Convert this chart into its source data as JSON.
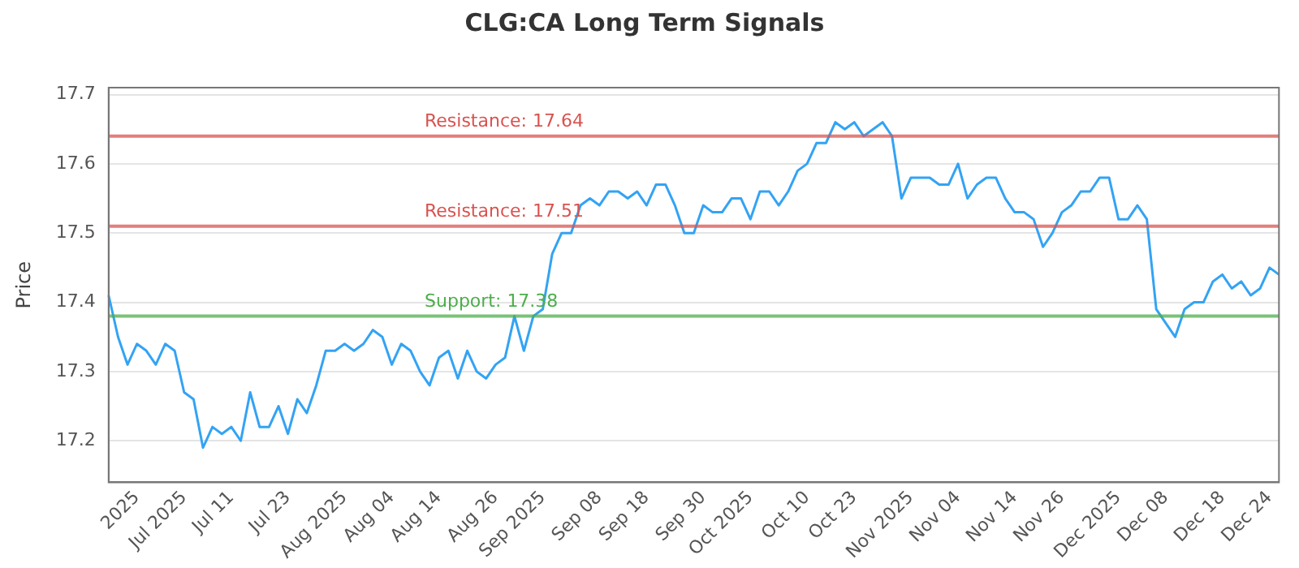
{
  "chart_data": {
    "type": "line",
    "title": "CLG:CA Long Term Signals",
    "ylabel": "Price",
    "categories": [
      null,
      null,
      null,
      "2025",
      null,
      null,
      null,
      null,
      "Jul 2025",
      null,
      null,
      null,
      null,
      "Jul 11",
      null,
      null,
      null,
      null,
      null,
      "Jul 23",
      null,
      null,
      null,
      null,
      null,
      "Aug 2025",
      null,
      null,
      null,
      null,
      "Aug 04",
      null,
      null,
      null,
      null,
      "Aug 14",
      null,
      null,
      null,
      null,
      null,
      "Aug 26",
      null,
      null,
      null,
      null,
      "Sep 2025",
      null,
      null,
      null,
      null,
      null,
      "Sep 08",
      null,
      null,
      null,
      null,
      "Sep 18",
      null,
      null,
      null,
      null,
      null,
      "Sep 30",
      null,
      null,
      null,
      null,
      "Oct 2025",
      null,
      null,
      null,
      null,
      null,
      "Oct 10",
      null,
      null,
      null,
      null,
      "Oct 23",
      null,
      null,
      null,
      null,
      null,
      "Nov 2025",
      null,
      null,
      null,
      null,
      "Nov 04",
      null,
      null,
      null,
      null,
      null,
      "Nov 14",
      null,
      null,
      null,
      null,
      "Nov 26",
      null,
      null,
      null,
      null,
      null,
      "Dec 2025",
      null,
      null,
      null,
      null,
      "Dec 08",
      null,
      null,
      null,
      null,
      null,
      "Dec 18",
      null,
      null,
      null,
      null,
      "Dec 24",
      null
    ],
    "series": [
      {
        "color": "#33a3f4",
        "values": [
          17.41,
          17.35,
          17.31,
          17.34,
          17.33,
          17.31,
          17.34,
          17.33,
          17.27,
          17.26,
          17.19,
          17.22,
          17.21,
          17.22,
          17.2,
          17.27,
          17.22,
          17.22,
          17.25,
          17.21,
          17.26,
          17.24,
          17.28,
          17.33,
          17.33,
          17.34,
          17.33,
          17.34,
          17.36,
          17.35,
          17.31,
          17.34,
          17.33,
          17.3,
          17.28,
          17.32,
          17.33,
          17.29,
          17.33,
          17.3,
          17.29,
          17.31,
          17.32,
          17.38,
          17.33,
          17.38,
          17.39,
          17.47,
          17.5,
          17.5,
          17.54,
          17.55,
          17.54,
          17.56,
          17.56,
          17.55,
          17.56,
          17.54,
          17.57,
          17.57,
          17.54,
          17.5,
          17.5,
          17.54,
          17.53,
          17.53,
          17.55,
          17.55,
          17.52,
          17.56,
          17.56,
          17.54,
          17.56,
          17.59,
          17.6,
          17.63,
          17.63,
          17.66,
          17.65,
          17.66,
          17.64,
          17.65,
          17.66,
          17.64,
          17.55,
          17.58,
          17.58,
          17.58,
          17.57,
          17.57,
          17.6,
          17.55,
          17.57,
          17.58,
          17.58,
          17.55,
          17.53,
          17.53,
          17.52,
          17.48,
          17.5,
          17.53,
          17.54,
          17.56,
          17.56,
          17.58,
          17.58,
          17.52,
          17.52,
          17.54,
          17.52,
          17.39,
          17.37,
          17.35,
          17.39,
          17.4,
          17.4,
          17.43,
          17.44,
          17.42,
          17.43,
          17.41,
          17.42,
          17.45,
          17.44
        ]
      }
    ],
    "ylim": [
      17.14,
      17.71
    ],
    "yticks": [
      17.2,
      17.3,
      17.4,
      17.5,
      17.6,
      17.7
    ],
    "grid": "y",
    "legend": false,
    "marker": "none",
    "line_style": "solid",
    "ref_lines": [
      {
        "axis": "y",
        "value": 17.64,
        "label": "Resistance: 17.64",
        "color": "#d9534f"
      },
      {
        "axis": "y",
        "value": 17.51,
        "label": "Resistance: 17.51",
        "color": "#d9534f"
      },
      {
        "axis": "y",
        "value": 17.38,
        "label": "Support: 17.38",
        "color": "#4cae4c"
      }
    ]
  }
}
